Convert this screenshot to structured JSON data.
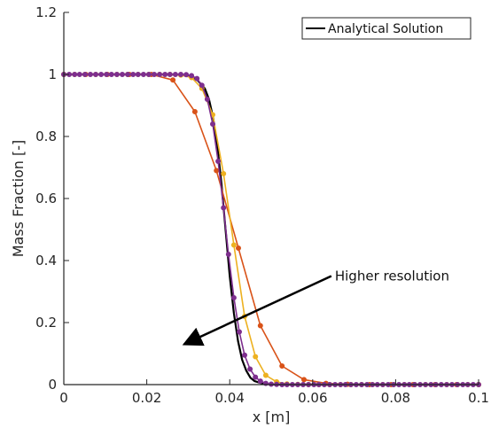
{
  "chart_data": {
    "type": "line",
    "title": "",
    "xlabel": "x [m]",
    "ylabel": "Mass Fraction [-]",
    "xlim": [
      0,
      0.1
    ],
    "ylim": [
      0,
      1.2
    ],
    "xticks": [
      0,
      0.02,
      0.04,
      0.06,
      0.08,
      0.1
    ],
    "xtick_labels": [
      "0",
      "0.02",
      "0.04",
      "0.06",
      "0.08",
      "0.1"
    ],
    "yticks": [
      0,
      0.2,
      0.4,
      0.6,
      0.8,
      1,
      1.2
    ],
    "ytick_labels": [
      "0",
      "0.2",
      "0.4",
      "0.6",
      "0.8",
      "1",
      "1.2"
    ],
    "grid": false,
    "legend": {
      "placement": "top-right",
      "entries": [
        "Analytical Solution"
      ]
    },
    "annotation": {
      "text": "Higher resolution",
      "arrow_from": [
        0.0645,
        0.35
      ],
      "arrow_to": [
        0.029,
        0.13
      ]
    },
    "series": [
      {
        "name": "Analytical Solution",
        "color": "#000000",
        "marker": "none",
        "x": [
          0,
          0.025,
          0.028,
          0.03,
          0.032,
          0.034,
          0.035,
          0.036,
          0.037,
          0.038,
          0.039,
          0.04,
          0.041,
          0.042,
          0.043,
          0.044,
          0.045,
          0.046,
          0.048,
          0.05,
          0.055,
          0.1
        ],
        "values": [
          1.0,
          1.0,
          0.999,
          0.996,
          0.985,
          0.955,
          0.92,
          0.86,
          0.77,
          0.65,
          0.5,
          0.35,
          0.23,
          0.14,
          0.08,
          0.045,
          0.022,
          0.011,
          0.003,
          0.0005,
          0.0,
          0.0
        ]
      },
      {
        "color": "#d95319",
        "marker": "circle",
        "x": [
          0,
          0.0053,
          0.0105,
          0.0158,
          0.0211,
          0.0263,
          0.0316,
          0.0368,
          0.0421,
          0.0474,
          0.0526,
          0.0579,
          0.0632,
          0.0684,
          0.0737,
          0.0789,
          0.0842,
          0.0895,
          0.0947,
          0.1
        ],
        "values": [
          1.0,
          1.0,
          1.0,
          1.0,
          1.0,
          0.982,
          0.88,
          0.69,
          0.44,
          0.19,
          0.06,
          0.016,
          0.004,
          0.001,
          0.0,
          0.0,
          0.0,
          0.0,
          0.0,
          0.0
        ]
      },
      {
        "color": "#edb120",
        "marker": "circle",
        "x": [
          0,
          0.0026,
          0.0051,
          0.0077,
          0.0103,
          0.0128,
          0.0154,
          0.0179,
          0.0205,
          0.0231,
          0.0256,
          0.0282,
          0.0308,
          0.0333,
          0.0359,
          0.0385,
          0.041,
          0.0436,
          0.0462,
          0.0487,
          0.0513,
          0.0538,
          0.0564,
          0.059,
          0.0615,
          0.0641,
          0.0667,
          0.0692,
          0.0718,
          0.0744,
          0.0769,
          0.0795,
          0.0821,
          0.0846,
          0.0872,
          0.0897,
          0.0923,
          0.0949,
          0.0974,
          0.1
        ],
        "values": [
          1.0,
          1.0,
          1.0,
          1.0,
          1.0,
          1.0,
          1.0,
          1.0,
          1.0,
          1.0,
          1.0,
          0.998,
          0.99,
          0.955,
          0.87,
          0.68,
          0.45,
          0.22,
          0.09,
          0.03,
          0.009,
          0.002,
          0.0005,
          0.0,
          0.0,
          0.0,
          0.0,
          0.0,
          0.0,
          0.0,
          0.0,
          0.0,
          0.0,
          0.0,
          0.0,
          0.0,
          0.0,
          0.0,
          0.0,
          0.0
        ]
      },
      {
        "color": "#7e2f8e",
        "marker": "circle",
        "x": [
          0,
          0.0013,
          0.0026,
          0.0038,
          0.0051,
          0.0064,
          0.0077,
          0.009,
          0.0103,
          0.0115,
          0.0128,
          0.0141,
          0.0154,
          0.0167,
          0.0179,
          0.0192,
          0.0205,
          0.0218,
          0.0231,
          0.0244,
          0.0256,
          0.0269,
          0.0282,
          0.0295,
          0.0308,
          0.0321,
          0.0333,
          0.0346,
          0.0359,
          0.0372,
          0.0385,
          0.0397,
          0.041,
          0.0423,
          0.0436,
          0.0449,
          0.0462,
          0.0474,
          0.0487,
          0.05,
          0.0513,
          0.0526,
          0.0538,
          0.0551,
          0.0564,
          0.0577,
          0.059,
          0.0603,
          0.0615,
          0.0628,
          0.0641,
          0.0654,
          0.0667,
          0.0679,
          0.0692,
          0.0705,
          0.0718,
          0.0731,
          0.0744,
          0.0756,
          0.0769,
          0.0782,
          0.0795,
          0.0808,
          0.0821,
          0.0833,
          0.0846,
          0.0859,
          0.0872,
          0.0885,
          0.0897,
          0.091,
          0.0923,
          0.0936,
          0.0949,
          0.0962,
          0.0974,
          0.0987,
          0.1
        ],
        "values": [
          1.0,
          1.0,
          1.0,
          1.0,
          1.0,
          1.0,
          1.0,
          1.0,
          1.0,
          1.0,
          1.0,
          1.0,
          1.0,
          1.0,
          1.0,
          1.0,
          1.0,
          1.0,
          1.0,
          1.0,
          1.0,
          1.0,
          1.0,
          0.999,
          0.996,
          0.987,
          0.965,
          0.92,
          0.84,
          0.72,
          0.57,
          0.42,
          0.28,
          0.17,
          0.095,
          0.05,
          0.024,
          0.011,
          0.004,
          0.0015,
          0.0005,
          0.0,
          0.0,
          0.0,
          0.0,
          0.0,
          0.0,
          0.0,
          0.0,
          0.0,
          0.0,
          0.0,
          0.0,
          0.0,
          0.0,
          0.0,
          0.0,
          0.0,
          0.0,
          0.0,
          0.0,
          0.0,
          0.0,
          0.0,
          0.0,
          0.0,
          0.0,
          0.0,
          0.0,
          0.0,
          0.0,
          0.0,
          0.0,
          0.0,
          0.0,
          0.0,
          0.0,
          0.0,
          0.0
        ]
      }
    ]
  }
}
